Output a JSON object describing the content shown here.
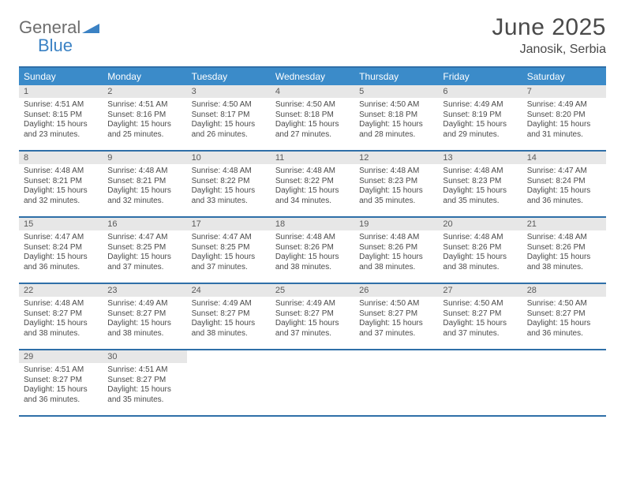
{
  "colors": {
    "header_blue": "#3b8bc9",
    "rule_blue": "#2f6fa8",
    "daynum_bg": "#e7e7e7",
    "text": "#4a4a4a",
    "logo_grey": "#6d6d6d",
    "logo_blue": "#3b82c4",
    "background": "#ffffff"
  },
  "typography": {
    "title_fontsize": 30,
    "location_fontsize": 16,
    "weekday_fontsize": 12,
    "daynum_fontsize": 11,
    "body_fontsize": 10
  },
  "logo": {
    "line1": "General",
    "line2": "Blue"
  },
  "title": "June 2025",
  "location": "Janosik, Serbia",
  "weekdays": [
    "Sunday",
    "Monday",
    "Tuesday",
    "Wednesday",
    "Thursday",
    "Friday",
    "Saturday"
  ],
  "calendar": {
    "type": "table",
    "columns": 7,
    "rows": 5,
    "start_weekday_index": 0
  },
  "days": [
    {
      "n": 1,
      "sunrise": "4:51 AM",
      "sunset": "8:15 PM",
      "daylight": "15 hours and 23 minutes."
    },
    {
      "n": 2,
      "sunrise": "4:51 AM",
      "sunset": "8:16 PM",
      "daylight": "15 hours and 25 minutes."
    },
    {
      "n": 3,
      "sunrise": "4:50 AM",
      "sunset": "8:17 PM",
      "daylight": "15 hours and 26 minutes."
    },
    {
      "n": 4,
      "sunrise": "4:50 AM",
      "sunset": "8:18 PM",
      "daylight": "15 hours and 27 minutes."
    },
    {
      "n": 5,
      "sunrise": "4:50 AM",
      "sunset": "8:18 PM",
      "daylight": "15 hours and 28 minutes."
    },
    {
      "n": 6,
      "sunrise": "4:49 AM",
      "sunset": "8:19 PM",
      "daylight": "15 hours and 29 minutes."
    },
    {
      "n": 7,
      "sunrise": "4:49 AM",
      "sunset": "8:20 PM",
      "daylight": "15 hours and 31 minutes."
    },
    {
      "n": 8,
      "sunrise": "4:48 AM",
      "sunset": "8:21 PM",
      "daylight": "15 hours and 32 minutes."
    },
    {
      "n": 9,
      "sunrise": "4:48 AM",
      "sunset": "8:21 PM",
      "daylight": "15 hours and 32 minutes."
    },
    {
      "n": 10,
      "sunrise": "4:48 AM",
      "sunset": "8:22 PM",
      "daylight": "15 hours and 33 minutes."
    },
    {
      "n": 11,
      "sunrise": "4:48 AM",
      "sunset": "8:22 PM",
      "daylight": "15 hours and 34 minutes."
    },
    {
      "n": 12,
      "sunrise": "4:48 AM",
      "sunset": "8:23 PM",
      "daylight": "15 hours and 35 minutes."
    },
    {
      "n": 13,
      "sunrise": "4:48 AM",
      "sunset": "8:23 PM",
      "daylight": "15 hours and 35 minutes."
    },
    {
      "n": 14,
      "sunrise": "4:47 AM",
      "sunset": "8:24 PM",
      "daylight": "15 hours and 36 minutes."
    },
    {
      "n": 15,
      "sunrise": "4:47 AM",
      "sunset": "8:24 PM",
      "daylight": "15 hours and 36 minutes."
    },
    {
      "n": 16,
      "sunrise": "4:47 AM",
      "sunset": "8:25 PM",
      "daylight": "15 hours and 37 minutes."
    },
    {
      "n": 17,
      "sunrise": "4:47 AM",
      "sunset": "8:25 PM",
      "daylight": "15 hours and 37 minutes."
    },
    {
      "n": 18,
      "sunrise": "4:48 AM",
      "sunset": "8:26 PM",
      "daylight": "15 hours and 38 minutes."
    },
    {
      "n": 19,
      "sunrise": "4:48 AM",
      "sunset": "8:26 PM",
      "daylight": "15 hours and 38 minutes."
    },
    {
      "n": 20,
      "sunrise": "4:48 AM",
      "sunset": "8:26 PM",
      "daylight": "15 hours and 38 minutes."
    },
    {
      "n": 21,
      "sunrise": "4:48 AM",
      "sunset": "8:26 PM",
      "daylight": "15 hours and 38 minutes."
    },
    {
      "n": 22,
      "sunrise": "4:48 AM",
      "sunset": "8:27 PM",
      "daylight": "15 hours and 38 minutes."
    },
    {
      "n": 23,
      "sunrise": "4:49 AM",
      "sunset": "8:27 PM",
      "daylight": "15 hours and 38 minutes."
    },
    {
      "n": 24,
      "sunrise": "4:49 AM",
      "sunset": "8:27 PM",
      "daylight": "15 hours and 38 minutes."
    },
    {
      "n": 25,
      "sunrise": "4:49 AM",
      "sunset": "8:27 PM",
      "daylight": "15 hours and 37 minutes."
    },
    {
      "n": 26,
      "sunrise": "4:50 AM",
      "sunset": "8:27 PM",
      "daylight": "15 hours and 37 minutes."
    },
    {
      "n": 27,
      "sunrise": "4:50 AM",
      "sunset": "8:27 PM",
      "daylight": "15 hours and 37 minutes."
    },
    {
      "n": 28,
      "sunrise": "4:50 AM",
      "sunset": "8:27 PM",
      "daylight": "15 hours and 36 minutes."
    },
    {
      "n": 29,
      "sunrise": "4:51 AM",
      "sunset": "8:27 PM",
      "daylight": "15 hours and 36 minutes."
    },
    {
      "n": 30,
      "sunrise": "4:51 AM",
      "sunset": "8:27 PM",
      "daylight": "15 hours and 35 minutes."
    }
  ],
  "labels": {
    "sunrise_prefix": "Sunrise: ",
    "sunset_prefix": "Sunset: ",
    "daylight_prefix": "Daylight: "
  }
}
